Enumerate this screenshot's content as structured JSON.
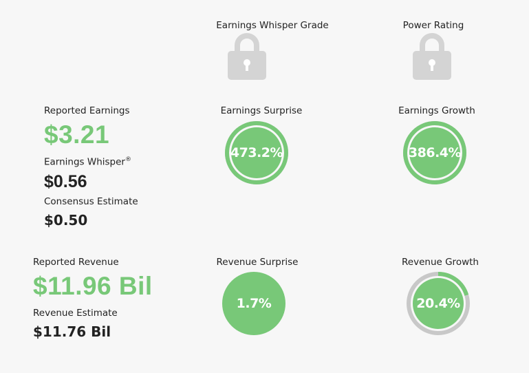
{
  "grade": {
    "earnings_whisper_grade_label": "Earnings Whisper Grade",
    "power_rating_label": "Power Rating",
    "grade_icon": "lock-icon",
    "rating_icon": "lock-icon"
  },
  "earnings": {
    "reported_label": "Reported Earnings",
    "reported_value": "$3.21",
    "whisper_label": "Earnings Whisper",
    "whisper_mark": "®",
    "whisper_value": "$0.56",
    "consensus_label": "Consensus Estimate",
    "consensus_value": "$0.50",
    "surprise_label": "Earnings Surprise",
    "surprise_value": "473.2%",
    "surprise_fraction": 1.0,
    "growth_label": "Earnings Growth",
    "growth_value": "386.4%",
    "growth_fraction": 1.0
  },
  "revenue": {
    "reported_label": "Reported Revenue",
    "reported_value": "$11.96 Bil",
    "estimate_label": "Revenue Estimate",
    "estimate_value": "$11.76 Bil",
    "surprise_label": "Revenue Surprise",
    "surprise_value": "1.7%",
    "surprise_fraction": 0.017,
    "growth_label": "Revenue Growth",
    "growth_value": "20.4%",
    "growth_fraction": 0.204
  },
  "colors": {
    "green": "#78c878",
    "track_gray": "#c8c8c8",
    "lock_gray": "#d4d4d4",
    "background": "#f7f7f7"
  }
}
